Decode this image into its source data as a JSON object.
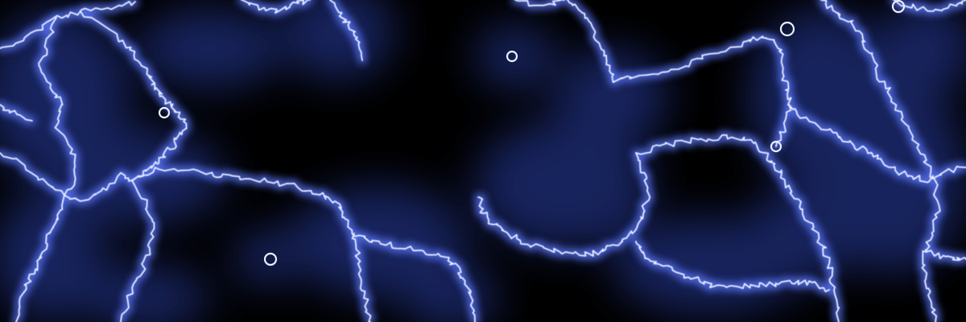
{
  "image": {
    "subject": "plasma-lightning-texture",
    "palette": {
      "background": "#000000",
      "haze": "#2a3fa8",
      "glow": "#5b78ff",
      "core": "#e9efff"
    }
  }
}
